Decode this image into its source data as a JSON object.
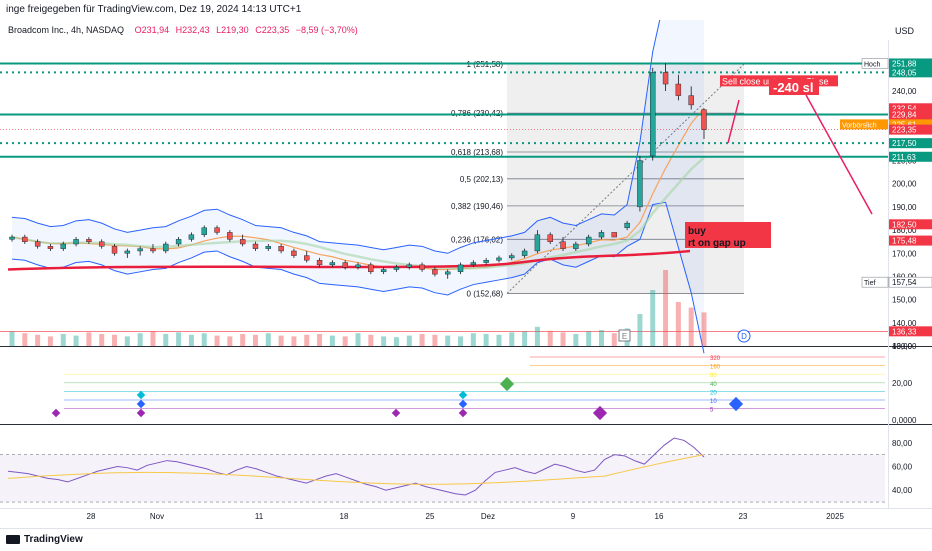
{
  "header": {
    "published": "inge freigegeben für TradingView.com, Dez 19, 2024 14:13 UTC+1",
    "currency": "USD"
  },
  "legend": {
    "symbol": "Broadcom Inc., 4h, NASDAQ",
    "open": "O231,94",
    "high": "H232,43",
    "low": "L219,30",
    "close": "C223,35",
    "change": "−8,59 (−3,70%)"
  },
  "footer": {
    "brand": "TradingView"
  },
  "colors": {
    "bullish": "#26a69a",
    "bearish": "#ef5350",
    "ma_red": "#e91e3c",
    "band_blue": "#2962ff",
    "hline_green": "#089981",
    "fib_gray": "#787b86",
    "price_tag_red": "#f23645",
    "orange_tag": "#ff9800"
  },
  "chart_data": [
    {
      "type": "candlestick",
      "title": "Broadcom Inc., 4h, NASDAQ",
      "ylim": [
        130,
        262
      ],
      "y_ticks": [
        "250,00",
        "240,00",
        "230,00",
        "210,00",
        "200,00",
        "190,00",
        "180,00",
        "170,00",
        "160,00",
        "150,00",
        "140,00",
        "130,00"
      ],
      "x_ticks": [
        "28",
        "Nov",
        "11",
        "18",
        "25",
        "Dez",
        "9",
        "16",
        "23",
        "2025"
      ],
      "candles": [
        [
          176,
          178,
          175,
          177
        ],
        [
          177,
          178,
          174,
          175
        ],
        [
          175,
          176,
          172,
          173
        ],
        [
          173,
          174,
          171,
          172
        ],
        [
          172,
          175,
          171,
          174
        ],
        [
          174,
          177,
          173,
          176
        ],
        [
          176,
          177,
          174,
          175
        ],
        [
          175,
          176,
          172,
          173
        ],
        [
          173,
          174,
          169,
          170
        ],
        [
          170,
          172,
          168,
          171
        ],
        [
          171,
          173,
          169,
          172
        ],
        [
          172,
          174,
          170,
          171
        ],
        [
          171,
          175,
          170,
          174
        ],
        [
          174,
          177,
          173,
          176
        ],
        [
          176,
          179,
          175,
          178
        ],
        [
          178,
          182,
          177,
          181
        ],
        [
          181,
          182,
          178,
          179
        ],
        [
          179,
          180,
          175,
          176
        ],
        [
          176,
          178,
          173,
          174
        ],
        [
          174,
          175,
          171,
          172
        ],
        [
          172,
          174,
          171,
          173
        ],
        [
          173,
          174,
          170,
          171
        ],
        [
          171,
          172,
          168,
          169
        ],
        [
          169,
          171,
          166,
          167
        ],
        [
          167,
          168,
          164,
          165
        ],
        [
          165,
          167,
          164,
          166
        ],
        [
          166,
          167,
          163,
          164
        ],
        [
          164,
          166,
          163,
          165
        ],
        [
          165,
          166,
          161,
          162
        ],
        [
          162,
          164,
          161,
          163
        ],
        [
          163,
          165,
          162,
          164
        ],
        [
          164,
          166,
          163,
          165
        ],
        [
          165,
          166,
          162,
          163
        ],
        [
          163,
          164,
          160,
          161
        ],
        [
          161,
          163,
          159,
          162
        ],
        [
          162,
          166,
          161,
          165
        ],
        [
          165,
          167,
          164,
          166
        ],
        [
          166,
          168,
          165,
          167
        ],
        [
          167,
          169,
          166,
          168
        ],
        [
          168,
          170,
          167,
          169
        ],
        [
          169,
          172,
          168,
          171
        ],
        [
          171,
          180,
          170,
          178
        ],
        [
          178,
          179,
          174,
          175
        ],
        [
          175,
          177,
          171,
          172
        ],
        [
          172,
          175,
          171,
          174
        ],
        [
          174,
          178,
          173,
          177
        ],
        [
          177,
          180,
          176,
          179
        ],
        [
          179,
          178,
          177,
          177
        ],
        [
          181,
          184,
          180,
          183
        ],
        [
          190,
          212,
          188,
          210
        ],
        [
          212,
          250,
          210,
          248
        ],
        [
          248,
          252,
          240,
          243
        ],
        [
          243,
          247,
          236,
          238
        ],
        [
          238,
          242,
          232,
          234
        ],
        [
          231.94,
          232.43,
          219.3,
          223.35
        ]
      ],
      "volume": [
        18,
        16,
        14,
        12,
        15,
        13,
        17,
        15,
        14,
        12,
        16,
        18,
        15,
        17,
        14,
        16,
        13,
        12,
        15,
        14,
        16,
        13,
        12,
        14,
        15,
        13,
        12,
        16,
        14,
        12,
        11,
        13,
        15,
        14,
        13,
        12,
        16,
        15,
        14,
        17,
        18,
        24,
        19,
        17,
        15,
        18,
        20,
        16,
        22,
        40,
        70,
        95,
        55,
        48,
        42
      ],
      "series": [
        {
          "name": "Hoch",
          "price": "251,88"
        },
        {
          "name": "",
          "price": "248,05"
        },
        {
          "name": "",
          "price": "232,54"
        },
        {
          "name": "",
          "price": "229,84"
        },
        {
          "name": "",
          "price": "225,61",
          "label": "Vorbörslich"
        },
        {
          "name": "",
          "price": "223,35"
        },
        {
          "name": "",
          "price": "217,50"
        },
        {
          "name": "",
          "price": "211,63"
        },
        {
          "name": "",
          "price": "182,50"
        },
        {
          "name": "",
          "price": "175,48"
        },
        {
          "name": "Tief",
          "price": "157,54"
        },
        {
          "name": "",
          "price": "136,33"
        }
      ],
      "fib_levels": [
        {
          "label": "1 (251,58)",
          "value": 251.58
        },
        {
          "label": "0,786 (230,42)",
          "value": 230.42
        },
        {
          "label": "0,618 (213,68)",
          "value": 213.68
        },
        {
          "label": "0,5 (202,13)",
          "value": 202.13
        },
        {
          "label": "0,382 (190,46)",
          "value": 190.46
        },
        {
          "label": "0,236 (176,02)",
          "value": 176.02
        },
        {
          "label": "0 (152,68)",
          "value": 152.68
        }
      ],
      "annotations": [
        "Sell close unter Gap Close",
        "-240 sl",
        "buy\nrt   on gap up"
      ],
      "grid": false
    },
    {
      "type": "scatter",
      "ylim": [
        0,
        40
      ],
      "y_ticks": [
        "40,00",
        "20,00",
        "0,0000"
      ],
      "legend_levels": [
        "320",
        "160",
        "80",
        "40",
        "20",
        "10",
        "5"
      ]
    },
    {
      "type": "line",
      "ylim": [
        25,
        95
      ],
      "y_ticks": [
        "80,00",
        "60,00",
        "40,00"
      ],
      "values": [
        56,
        55,
        54,
        52,
        50,
        49,
        47,
        50,
        53,
        56,
        58,
        60,
        59,
        57,
        61,
        63,
        65,
        64,
        62,
        60,
        58,
        55,
        53,
        57,
        60,
        58,
        55,
        52,
        50,
        48,
        46,
        49,
        52,
        54,
        51,
        48,
        45,
        43,
        40,
        42,
        44,
        46,
        43,
        41,
        39,
        37,
        36,
        40,
        48,
        55,
        57,
        59,
        56,
        54,
        58,
        62,
        60,
        57,
        55,
        57,
        66,
        70,
        69,
        65,
        62,
        70,
        78,
        84,
        82,
        76,
        68
      ]
    }
  ]
}
